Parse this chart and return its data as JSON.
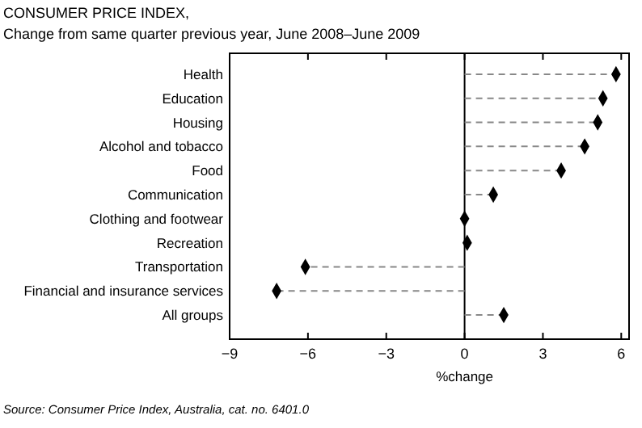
{
  "chart_data": {
    "type": "lollipop",
    "orientation": "horizontal",
    "title": "CONSUMER PRICE INDEX,",
    "subtitle": "Change from same quarter previous year, June 2008–June 2009",
    "xlabel": "%change",
    "categories": [
      "Health",
      "Education",
      "Housing",
      "Alcohol and tobacco",
      "Food",
      "Communication",
      "Clothing and footwear",
      "Recreation",
      "Transportation",
      "Financial and insurance services",
      "All groups"
    ],
    "values": [
      5.8,
      5.3,
      5.1,
      4.6,
      3.7,
      1.1,
      0,
      0.1,
      -6.1,
      -7.2,
      1.5
    ],
    "color": "#000000",
    "marker": "diamond",
    "line_style": "dashed",
    "xlim": [
      -9,
      6.3
    ],
    "xticks": [
      -9,
      -6,
      -3,
      0,
      3,
      6
    ],
    "ref_lines": [
      {
        "axis": "x",
        "value": 0,
        "color": "#000000"
      }
    ],
    "annotations": [
      "Source: Consumer Price Index, Australia, cat. no. 6401.0"
    ]
  }
}
